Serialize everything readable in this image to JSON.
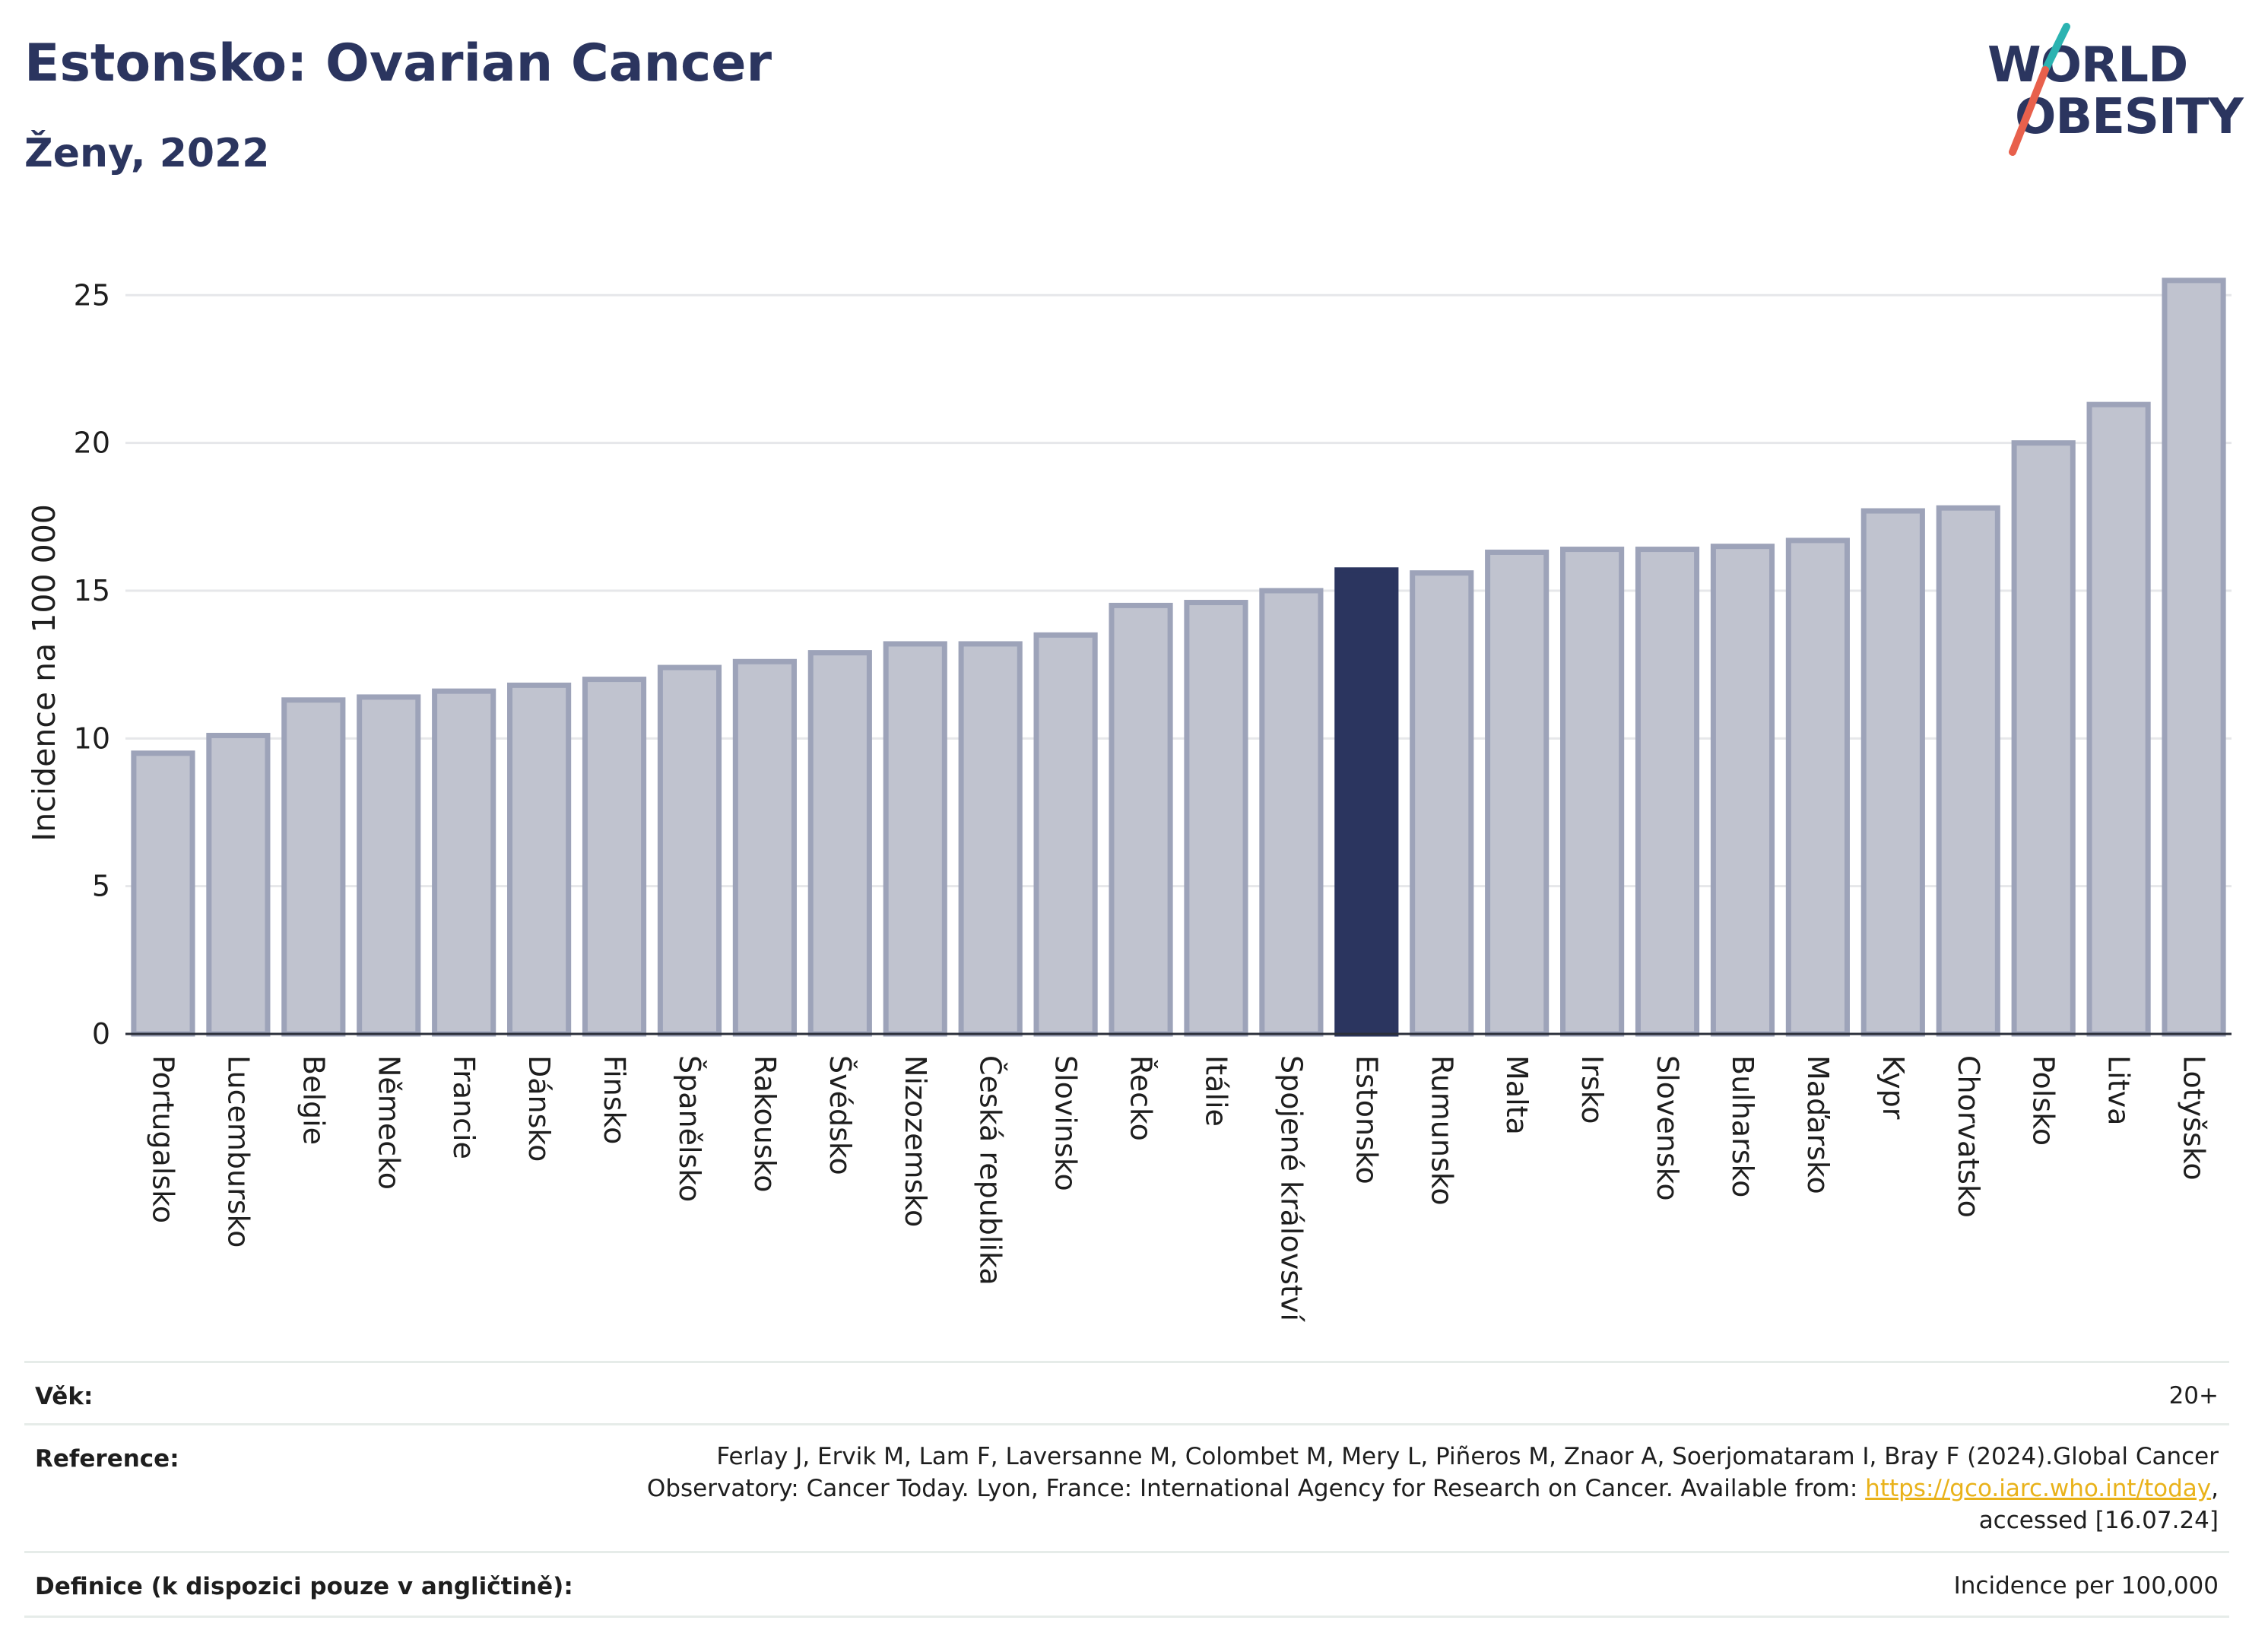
{
  "header": {
    "title": "Estonsko: Ovarian Cancer",
    "subtitle": "Ženy, 2022"
  },
  "logo": {
    "line1": "WORLD",
    "line2": "OBESITY",
    "accent_colors": [
      "#2bb3b1",
      "#e8604c"
    ]
  },
  "chart_data": {
    "type": "bar",
    "title": "Estonsko: Ovarian Cancer",
    "ylabel": "Incidence na 100 000",
    "xlabel": "",
    "ylim": [
      0,
      26.5
    ],
    "yticks": [
      0,
      5,
      10,
      15,
      20,
      25
    ],
    "grid": true,
    "highlight": "Estonsko",
    "colors": {
      "bar": "#c0c3cf",
      "bar_border": "#9da3b9",
      "highlight": "#2b355f",
      "grid": "#e6e7ea",
      "axis": "#2b2f3a"
    },
    "categories": [
      "Portugalsko",
      "Lucembursko",
      "Belgie",
      "Německo",
      "Francie",
      "Dánsko",
      "Finsko",
      "Španělsko",
      "Rakousko",
      "Švédsko",
      "Nizozemsko",
      "Česká republika",
      "Slovinsko",
      "Řecko",
      "Itálie",
      "Spojené království",
      "Estonsko",
      "Rumunsko",
      "Malta",
      "Irsko",
      "Slovensko",
      "Bulharsko",
      "Maďarsko",
      "Kypr",
      "Chorvatsko",
      "Polsko",
      "Litva",
      "Lotyšsko"
    ],
    "values": [
      9.5,
      10.1,
      11.3,
      11.4,
      11.6,
      11.8,
      12.0,
      12.4,
      12.6,
      12.9,
      13.2,
      13.2,
      13.5,
      14.5,
      14.6,
      15.0,
      15.7,
      15.6,
      16.3,
      16.4,
      16.4,
      16.5,
      16.7,
      17.7,
      17.8,
      20.0,
      21.3,
      25.5
    ]
  },
  "info": {
    "age_label": "Věk:",
    "age_value": "20+",
    "reference_label": "Reference:",
    "reference_line1": "Ferlay J, Ervik M, Lam F, Laversanne M, Colombet M, Mery L, Piñeros M, Znaor A, Soerjomataram I, Bray F (2024).Global Cancer",
    "reference_line2_pre": "Observatory: Cancer Today. Lyon, France: International Agency for Research on Cancer. Available from: ",
    "reference_link": "https://gco.iarc.who.int/today",
    "reference_line2_post": ",",
    "reference_line3": "accessed [16.07.24]",
    "definition_label": "Definice (k dispozici pouze v angličtině):",
    "definition_value": "Incidence per 100,000"
  }
}
